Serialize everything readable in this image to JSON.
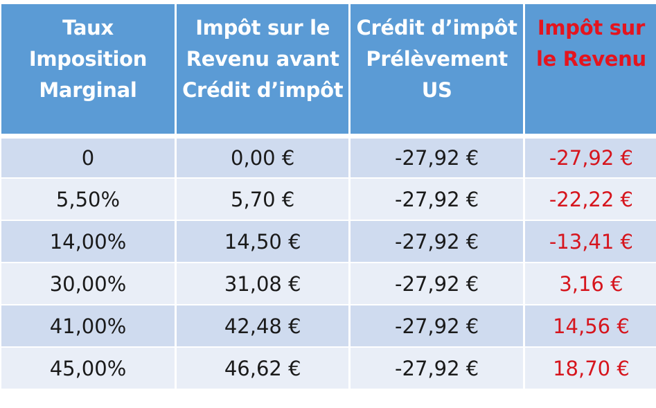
{
  "table": {
    "headers": [
      "Taux Imposition Marginal",
      "Impôt sur le Revenu avant Crédit d’impôt",
      "Crédit d’impôt Prélèvement US",
      "Impôt sur le Revenu"
    ],
    "rows": [
      [
        "0",
        "0,00 €",
        "-27,92 €",
        "-27,92 €"
      ],
      [
        "5,50%",
        "5,70 €",
        "-27,92 €",
        "-22,22 €"
      ],
      [
        "14,00%",
        "14,50 €",
        "-27,92 €",
        "-13,41 €"
      ],
      [
        "30,00%",
        "31,08 €",
        "-27,92 €",
        "3,16 €"
      ],
      [
        "41,00%",
        "42,48 €",
        "-27,92 €",
        "14,56 €"
      ],
      [
        "45,00%",
        "46,62 €",
        "-27,92 €",
        "18,70 €"
      ]
    ],
    "colors": {
      "header_bg": "#5b9bd5",
      "header_text": "#ffffff",
      "accent_red": "#e4141e",
      "row_dark": "#cfdbef",
      "row_light": "#e9eef7"
    }
  }
}
